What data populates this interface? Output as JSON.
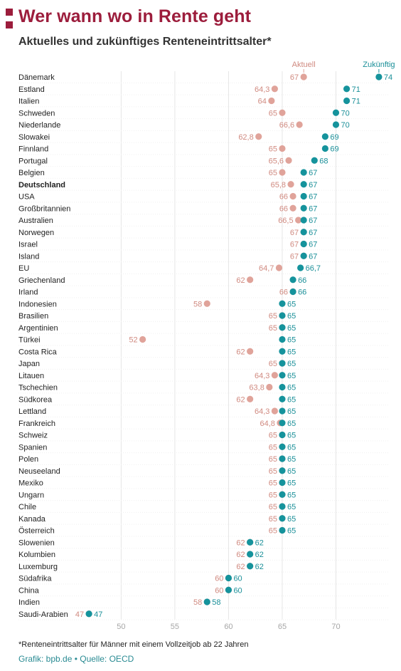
{
  "title": "Wer wann wo in Rente geht",
  "subtitle": "Aktuelles und zukünftiges Renteneintrittsalter*",
  "footnote": "*Renteneintrittsalter für Männer mit einem Vollzeitjob ab 22 Jahren",
  "source": "Grafik: bpb.de • Quelle: OECD",
  "colors": {
    "brand": "#9c1d3c",
    "current": "#e0a39a",
    "current_label": "#d08a80",
    "future": "#15939c",
    "future_label": "#1a8f98"
  },
  "chart_data": {
    "type": "dumbbell",
    "x_ticks": [
      50,
      55,
      60,
      65,
      70
    ],
    "xlim": [
      46,
      75
    ],
    "grid": true,
    "series": [
      {
        "name": "Aktuell",
        "key": "current"
      },
      {
        "name": "Zukünftig",
        "key": "future"
      }
    ],
    "highlight": "Deutschland",
    "rows": [
      {
        "country": "Dänemark",
        "current": 67,
        "current_label": "67",
        "future": 74,
        "future_label": "74"
      },
      {
        "country": "Estland",
        "current": 64.3,
        "current_label": "64,3",
        "future": 71,
        "future_label": "71"
      },
      {
        "country": "Italien",
        "current": 64,
        "current_label": "64",
        "future": 71,
        "future_label": "71"
      },
      {
        "country": "Schweden",
        "current": 65,
        "current_label": "65",
        "future": 70,
        "future_label": "70"
      },
      {
        "country": "Niederlande",
        "current": 66.6,
        "current_label": "66,6",
        "future": 70,
        "future_label": "70"
      },
      {
        "country": "Slowakei",
        "current": 62.8,
        "current_label": "62,8",
        "future": 69,
        "future_label": "69"
      },
      {
        "country": "Finnland",
        "current": 65,
        "current_label": "65",
        "future": 69,
        "future_label": "69"
      },
      {
        "country": "Portugal",
        "current": 65.6,
        "current_label": "65,6",
        "future": 68,
        "future_label": "68"
      },
      {
        "country": "Belgien",
        "current": 65,
        "current_label": "65",
        "future": 67,
        "future_label": "67"
      },
      {
        "country": "Deutschland",
        "current": 65.8,
        "current_label": "65,8",
        "future": 67,
        "future_label": "67"
      },
      {
        "country": "USA",
        "current": 66,
        "current_label": "66",
        "future": 67,
        "future_label": "67"
      },
      {
        "country": "Großbritannien",
        "current": 66,
        "current_label": "66",
        "future": 67,
        "future_label": "67"
      },
      {
        "country": "Australien",
        "current": 66.5,
        "current_label": "66,5",
        "future": 67,
        "future_label": "67"
      },
      {
        "country": "Norwegen",
        "current": 67,
        "current_label": "67",
        "future": 67,
        "future_label": "67"
      },
      {
        "country": "Israel",
        "current": 67,
        "current_label": "67",
        "future": 67,
        "future_label": "67"
      },
      {
        "country": "Island",
        "current": 67,
        "current_label": "67",
        "future": 67,
        "future_label": "67"
      },
      {
        "country": "EU",
        "current": 64.7,
        "current_label": "64,7",
        "future": 66.7,
        "future_label": "66,7"
      },
      {
        "country": "Griechenland",
        "current": 62,
        "current_label": "62",
        "future": 66,
        "future_label": "66"
      },
      {
        "country": "Irland",
        "current": 66,
        "current_label": "66",
        "future": 66,
        "future_label": "66"
      },
      {
        "country": "Indonesien",
        "current": 58,
        "current_label": "58",
        "future": 65,
        "future_label": "65"
      },
      {
        "country": "Brasilien",
        "current": 65,
        "current_label": "65",
        "future": 65,
        "future_label": "65"
      },
      {
        "country": "Argentinien",
        "current": 65,
        "current_label": "65",
        "future": 65,
        "future_label": "65"
      },
      {
        "country": "Türkei",
        "current": 52,
        "current_label": "52",
        "future": 65,
        "future_label": "65"
      },
      {
        "country": "Costa Rica",
        "current": 62,
        "current_label": "62",
        "future": 65,
        "future_label": "65"
      },
      {
        "country": "Japan",
        "current": 65,
        "current_label": "65",
        "future": 65,
        "future_label": "65"
      },
      {
        "country": "Litauen",
        "current": 64.3,
        "current_label": "64,3",
        "future": 65,
        "future_label": "65"
      },
      {
        "country": "Tschechien",
        "current": 63.8,
        "current_label": "63,8",
        "future": 65,
        "future_label": "65"
      },
      {
        "country": "Südkorea",
        "current": 62,
        "current_label": "62",
        "future": 65,
        "future_label": "65"
      },
      {
        "country": "Lettland",
        "current": 64.3,
        "current_label": "64,3",
        "future": 65,
        "future_label": "65"
      },
      {
        "country": "Frankreich",
        "current": 64.8,
        "current_label": "64,8",
        "future": 65,
        "future_label": "65"
      },
      {
        "country": "Schweiz",
        "current": 65,
        "current_label": "65",
        "future": 65,
        "future_label": "65"
      },
      {
        "country": "Spanien",
        "current": 65,
        "current_label": "65",
        "future": 65,
        "future_label": "65"
      },
      {
        "country": "Polen",
        "current": 65,
        "current_label": "65",
        "future": 65,
        "future_label": "65"
      },
      {
        "country": "Neuseeland",
        "current": 65,
        "current_label": "65",
        "future": 65,
        "future_label": "65"
      },
      {
        "country": "Mexiko",
        "current": 65,
        "current_label": "65",
        "future": 65,
        "future_label": "65"
      },
      {
        "country": "Ungarn",
        "current": 65,
        "current_label": "65",
        "future": 65,
        "future_label": "65"
      },
      {
        "country": "Chile",
        "current": 65,
        "current_label": "65",
        "future": 65,
        "future_label": "65"
      },
      {
        "country": "Kanada",
        "current": 65,
        "current_label": "65",
        "future": 65,
        "future_label": "65"
      },
      {
        "country": "Österreich",
        "current": 65,
        "current_label": "65",
        "future": 65,
        "future_label": "65"
      },
      {
        "country": "Slowenien",
        "current": 62,
        "current_label": "62",
        "future": 62,
        "future_label": "62"
      },
      {
        "country": "Kolumbien",
        "current": 62,
        "current_label": "62",
        "future": 62,
        "future_label": "62"
      },
      {
        "country": "Luxemburg",
        "current": 62,
        "current_label": "62",
        "future": 62,
        "future_label": "62"
      },
      {
        "country": "Südafrika",
        "current": 60,
        "current_label": "60",
        "future": 60,
        "future_label": "60"
      },
      {
        "country": "China",
        "current": 60,
        "current_label": "60",
        "future": 60,
        "future_label": "60"
      },
      {
        "country": "Indien",
        "current": 58,
        "current_label": "58",
        "future": 58,
        "future_label": "58"
      },
      {
        "country": "Saudi-Arabien",
        "current": 47,
        "current_label": "47",
        "future": 47,
        "future_label": "47"
      }
    ]
  }
}
